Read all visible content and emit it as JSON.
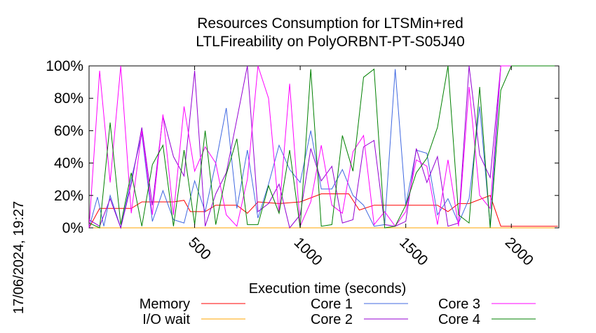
{
  "chart_data": {
    "type": "line",
    "title": [
      "Resources Consumption for LTSMin+red",
      "LTLFireability on PolyORBNT-PT-S05J40"
    ],
    "xlabel": "Execution time (seconds)",
    "ylabel": "",
    "timestamp": "17/06/2024, 19:27",
    "xlim": [
      0,
      2225
    ],
    "ylim": [
      0,
      100
    ],
    "x_ticks": [
      500,
      1000,
      1500,
      2000
    ],
    "y_ticks": [
      0,
      20,
      40,
      60,
      80,
      100
    ],
    "y_tick_labels": [
      "0%",
      "20%",
      "40%",
      "60%",
      "80%",
      "100%"
    ],
    "grid": false,
    "legend_position": "bottom",
    "series": [
      {
        "name": "Memory",
        "color": "#ff0000",
        "points": [
          [
            0,
            0
          ],
          [
            50,
            12
          ],
          [
            100,
            12
          ],
          [
            200,
            12
          ],
          [
            250,
            16
          ],
          [
            400,
            16
          ],
          [
            450,
            17
          ],
          [
            480,
            10
          ],
          [
            550,
            10
          ],
          [
            600,
            14
          ],
          [
            700,
            14
          ],
          [
            750,
            9
          ],
          [
            800,
            16
          ],
          [
            900,
            15
          ],
          [
            1000,
            16
          ],
          [
            1100,
            21
          ],
          [
            1230,
            21
          ],
          [
            1280,
            11
          ],
          [
            1350,
            14
          ],
          [
            1400,
            14
          ],
          [
            1500,
            14
          ],
          [
            1650,
            14
          ],
          [
            1700,
            10
          ],
          [
            1750,
            15
          ],
          [
            1800,
            15
          ],
          [
            1900,
            20
          ],
          [
            1950,
            1
          ],
          [
            2220,
            1
          ]
        ]
      },
      {
        "name": "I/O wait",
        "color": "#ffa500",
        "points": [
          [
            0,
            0
          ],
          [
            2220,
            0
          ]
        ]
      },
      {
        "name": "Core 1",
        "color": "#4169e1",
        "points": [
          [
            0,
            0
          ],
          [
            40,
            19
          ],
          [
            70,
            1
          ],
          [
            100,
            20
          ],
          [
            150,
            0
          ],
          [
            200,
            30
          ],
          [
            250,
            58
          ],
          [
            300,
            4
          ],
          [
            350,
            23
          ],
          [
            400,
            5
          ],
          [
            450,
            3
          ],
          [
            500,
            29
          ],
          [
            550,
            10
          ],
          [
            600,
            40
          ],
          [
            650,
            74
          ],
          [
            700,
            12
          ],
          [
            750,
            48
          ],
          [
            800,
            6
          ],
          [
            850,
            27
          ],
          [
            900,
            51
          ],
          [
            950,
            36
          ],
          [
            1000,
            28
          ],
          [
            1050,
            60
          ],
          [
            1100,
            24
          ],
          [
            1150,
            24
          ],
          [
            1200,
            36
          ],
          [
            1250,
            20
          ],
          [
            1300,
            14
          ],
          [
            1350,
            1
          ],
          [
            1400,
            2
          ],
          [
            1450,
            98
          ],
          [
            1500,
            14
          ],
          [
            1550,
            48
          ],
          [
            1600,
            46
          ],
          [
            1650,
            8
          ],
          [
            1700,
            18
          ],
          [
            1750,
            3
          ],
          [
            1800,
            18
          ],
          [
            1850,
            75
          ],
          [
            1900,
            1
          ],
          [
            1950,
            100
          ],
          [
            2220,
            100
          ]
        ]
      },
      {
        "name": "Core 2",
        "color": "#9400d3",
        "points": [
          [
            0,
            5
          ],
          [
            50,
            1
          ],
          [
            100,
            18
          ],
          [
            150,
            0
          ],
          [
            200,
            27
          ],
          [
            250,
            62
          ],
          [
            300,
            14
          ],
          [
            350,
            69
          ],
          [
            400,
            44
          ],
          [
            450,
            32
          ],
          [
            500,
            97
          ],
          [
            550,
            1
          ],
          [
            600,
            21
          ],
          [
            650,
            34
          ],
          [
            700,
            67
          ],
          [
            750,
            100
          ],
          [
            800,
            10
          ],
          [
            850,
            15
          ],
          [
            900,
            27
          ],
          [
            950,
            0
          ],
          [
            1000,
            8
          ],
          [
            1050,
            49
          ],
          [
            1100,
            29
          ],
          [
            1150,
            38
          ],
          [
            1200,
            3
          ],
          [
            1250,
            5
          ],
          [
            1300,
            50
          ],
          [
            1350,
            54
          ],
          [
            1400,
            2
          ],
          [
            1450,
            1
          ],
          [
            1500,
            4
          ],
          [
            1550,
            49
          ],
          [
            1600,
            28
          ],
          [
            1650,
            44
          ],
          [
            1700,
            1
          ],
          [
            1750,
            3
          ],
          [
            1800,
            100
          ],
          [
            1850,
            45
          ],
          [
            1900,
            31
          ],
          [
            1950,
            100
          ],
          [
            2220,
            100
          ]
        ]
      },
      {
        "name": "Core 3",
        "color": "#ff00ff",
        "points": [
          [
            0,
            0
          ],
          [
            50,
            97
          ],
          [
            100,
            28
          ],
          [
            150,
            100
          ],
          [
            200,
            9
          ],
          [
            250,
            60
          ],
          [
            300,
            8
          ],
          [
            350,
            70
          ],
          [
            400,
            8
          ],
          [
            450,
            75
          ],
          [
            500,
            35
          ],
          [
            550,
            50
          ],
          [
            600,
            40
          ],
          [
            650,
            8
          ],
          [
            700,
            1
          ],
          [
            750,
            30
          ],
          [
            800,
            100
          ],
          [
            850,
            80
          ],
          [
            900,
            9
          ],
          [
            950,
            89
          ],
          [
            1000,
            1
          ],
          [
            1050,
            16
          ],
          [
            1100,
            51
          ],
          [
            1150,
            14
          ],
          [
            1200,
            9
          ],
          [
            1250,
            47
          ],
          [
            1300,
            57
          ],
          [
            1350,
            2
          ],
          [
            1400,
            10
          ],
          [
            1450,
            1
          ],
          [
            1500,
            10
          ],
          [
            1550,
            42
          ],
          [
            1600,
            38
          ],
          [
            1650,
            2
          ],
          [
            1700,
            42
          ],
          [
            1750,
            1
          ],
          [
            1800,
            87
          ],
          [
            1850,
            20
          ],
          [
            1900,
            12
          ],
          [
            1950,
            100
          ],
          [
            2220,
            100
          ]
        ]
      },
      {
        "name": "Core 4",
        "color": "#008000",
        "points": [
          [
            0,
            3
          ],
          [
            50,
            0
          ],
          [
            100,
            65
          ],
          [
            150,
            2
          ],
          [
            200,
            34
          ],
          [
            250,
            1
          ],
          [
            300,
            39
          ],
          [
            350,
            51
          ],
          [
            400,
            1
          ],
          [
            450,
            48
          ],
          [
            500,
            2
          ],
          [
            550,
            60
          ],
          [
            600,
            2
          ],
          [
            650,
            33
          ],
          [
            700,
            55
          ],
          [
            750,
            2
          ],
          [
            800,
            2
          ],
          [
            850,
            26
          ],
          [
            900,
            9
          ],
          [
            950,
            48
          ],
          [
            1000,
            0
          ],
          [
            1050,
            98
          ],
          [
            1100,
            1
          ],
          [
            1150,
            2
          ],
          [
            1200,
            57
          ],
          [
            1250,
            35
          ],
          [
            1300,
            93
          ],
          [
            1350,
            98
          ],
          [
            1400,
            0
          ],
          [
            1450,
            1
          ],
          [
            1500,
            14
          ],
          [
            1550,
            34
          ],
          [
            1600,
            43
          ],
          [
            1650,
            62
          ],
          [
            1700,
            100
          ],
          [
            1750,
            8
          ],
          [
            1800,
            3
          ],
          [
            1850,
            87
          ],
          [
            1900,
            0
          ],
          [
            1950,
            85
          ],
          [
            2000,
            100
          ],
          [
            2220,
            100
          ]
        ]
      }
    ]
  }
}
